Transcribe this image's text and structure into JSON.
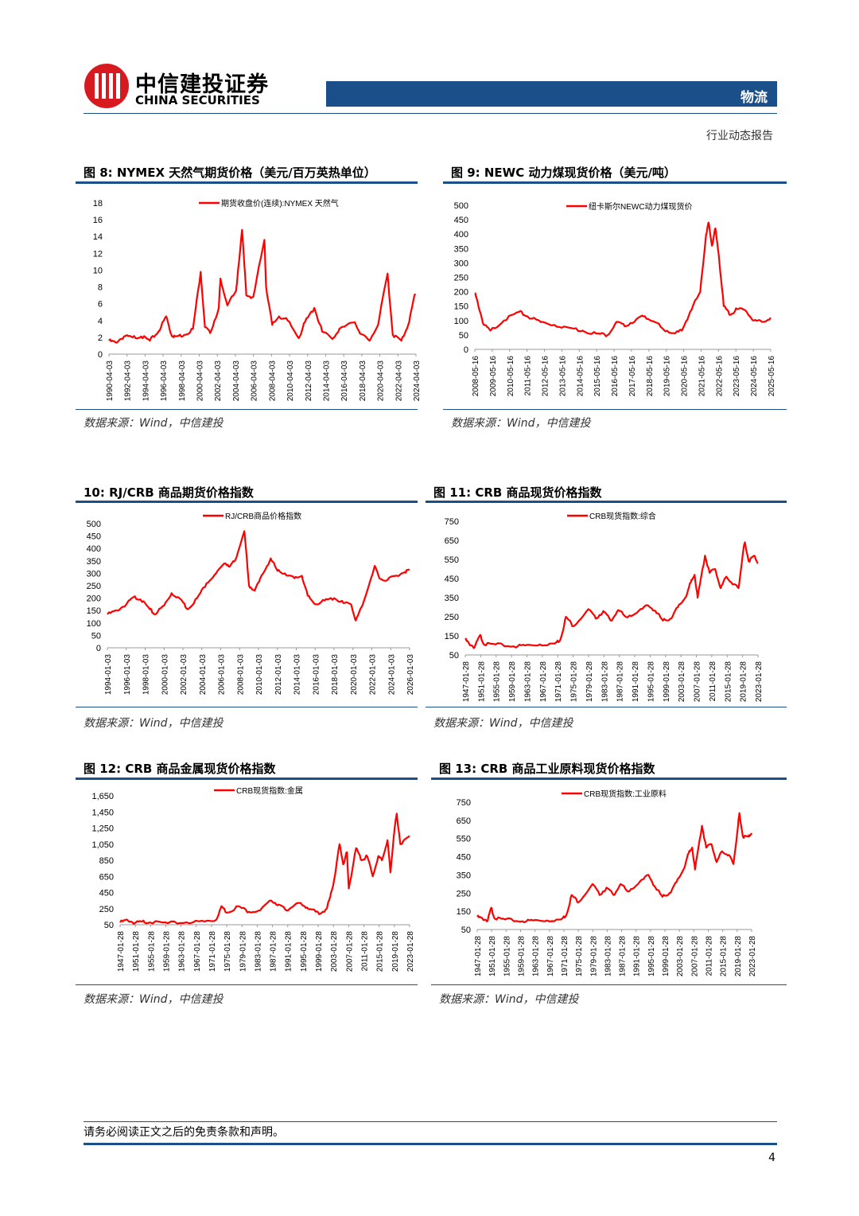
{
  "header": {
    "brand_cn": "中信建投证券",
    "brand_en": "CHINA SECURITIES",
    "category": "物流",
    "report_type": "行业动态报告",
    "accent": "#1b4f8a",
    "brand_red": "#d71920"
  },
  "figures": [
    {
      "title": "图 8: NYMEX 天然气期货价格（美元/百万英热单位）",
      "source": "数据来源：Wind，中信建投"
    },
    {
      "title": "图 9: NEWC 动力煤现货价格（美元/吨）",
      "source": "数据来源：Wind，中信建投"
    },
    {
      "title": "10: RJ/CRB 商品期货价格指数",
      "source": "数据来源：Wind，中信建投"
    },
    {
      "title": "图 11: CRB 商品现货价格指数",
      "source": "数据来源：Wind，中信建投"
    },
    {
      "title": "图 12: CRB 商品金属现货价格指数",
      "source": "数据来源：Wind，中信建投"
    },
    {
      "title": "图 13: CRB 商品工业原料现货价格指数",
      "source": "数据来源：Wind，中信建投"
    }
  ],
  "chart_data": [
    {
      "type": "line",
      "legend": "期货收盘价(连续):NYMEX 天然气",
      "color": "#ff0000",
      "ylim": [
        0,
        18
      ],
      "yticks": [
        "0",
        "2",
        "4",
        "6",
        "8",
        "10",
        "12",
        "14",
        "16",
        "18"
      ],
      "xticks": [
        "1990-04-03",
        "1992-04-03",
        "1994-04-03",
        "1996-04-03",
        "1998-04-03",
        "2000-04-03",
        "2002-04-03",
        "2004-04-03",
        "2006-04-03",
        "2008-04-03",
        "2010-04-03",
        "2012-04-03",
        "2014-04-03",
        "2016-04-03",
        "2018-04-03",
        "2020-04-03",
        "2022-04-03",
        "2024-04-03"
      ],
      "xrange": [
        1990.25,
        2025.9
      ],
      "x": [
        1990.25,
        1991,
        1992,
        1993,
        1994,
        1995,
        1996,
        1996.9,
        1997.5,
        1998,
        1999,
        2000,
        2000.9,
        2001.4,
        2002,
        2003,
        2003.2,
        2004,
        2005,
        2005.7,
        2006.2,
        2007,
        2008.3,
        2008.5,
        2009.2,
        2010,
        2011,
        2012.3,
        2013,
        2014.1,
        2015,
        2016.2,
        2017,
        2018.8,
        2019.5,
        2020.5,
        2021.5,
        2022.6,
        2023.2,
        2024.2,
        2025,
        2025.8
      ],
      "y": [
        1.6,
        1.4,
        2.1,
        2.0,
        2.1,
        1.6,
        2.7,
        4.5,
        2.3,
        2.1,
        2.3,
        3.0,
        9.8,
        3.2,
        2.5,
        5.5,
        9.0,
        5.8,
        7.5,
        14.8,
        7.0,
        6.8,
        13.6,
        8.0,
        3.5,
        4.5,
        4.0,
        1.9,
        3.8,
        5.5,
        2.7,
        1.8,
        3.0,
        3.8,
        2.4,
        1.6,
        3.5,
        9.6,
        2.3,
        1.6,
        3.5,
        7.2
      ]
    },
    {
      "type": "line",
      "legend": "纽卡斯尔NEWC动力煤现货价",
      "color": "#ff0000",
      "ylim": [
        0,
        500
      ],
      "yticks": [
        "0",
        "50",
        "100",
        "150",
        "200",
        "250",
        "300",
        "350",
        "400",
        "450",
        "500"
      ],
      "xticks": [
        "2008-05-16",
        "2009-05-16",
        "2010-05-16",
        "2011-05-16",
        "2012-05-16",
        "2013-05-16",
        "2014-05-16",
        "2015-05-16",
        "2016-05-16",
        "2017-05-16",
        "2018-05-16",
        "2019-05-16",
        "2020-05-16",
        "2021-05-16",
        "2022-05-16",
        "2023-05-16",
        "2024-05-16",
        "2025-05-16"
      ],
      "xrange": [
        2008.37,
        2026.0
      ],
      "x": [
        2008.37,
        2008.55,
        2008.9,
        2009.3,
        2010.1,
        2011.0,
        2011.5,
        2012.3,
        2013.1,
        2014.0,
        2014.8,
        2015.6,
        2016.3,
        2016.8,
        2017.3,
        2018.0,
        2018.5,
        2019.1,
        2019.6,
        2020.3,
        2020.7,
        2021.2,
        2021.8,
        2022.15,
        2022.3,
        2022.5,
        2022.7,
        2022.9,
        2023.2,
        2023.6,
        2024.0,
        2024.5,
        2025.0,
        2025.5,
        2026.0
      ],
      "y": [
        195,
        160,
        85,
        65,
        100,
        130,
        115,
        95,
        85,
        75,
        65,
        55,
        50,
        95,
        80,
        105,
        115,
        95,
        70,
        55,
        65,
        130,
        200,
        400,
        440,
        360,
        420,
        330,
        150,
        120,
        140,
        135,
        100,
        95,
        110
      ]
    },
    {
      "type": "line",
      "legend": "RJ/CRB商品价格指数",
      "color": "#ff0000",
      "ylim": [
        0,
        500
      ],
      "yticks": [
        "0",
        "50",
        "100",
        "150",
        "200",
        "250",
        "300",
        "350",
        "400",
        "450",
        "500"
      ],
      "xticks": [
        "1994-01-03",
        "1996-01-03",
        "1998-01-03",
        "2000-01-03",
        "2002-01-03",
        "2004-01-03",
        "2006-01-03",
        "2008-01-03",
        "2010-01-03",
        "2012-01-03",
        "2014-01-03",
        "2016-01-03",
        "2018-01-03",
        "2020-01-03",
        "2022-01-03",
        "2024-01-03",
        "2026-01-03"
      ],
      "xrange": [
        1994.0,
        2026.0
      ],
      "x": [
        1994,
        1995,
        1996,
        1996.8,
        1997.5,
        1998.5,
        1999,
        2000,
        2000.8,
        2001.8,
        2002.5,
        2003.5,
        2004.5,
        2005.5,
        2006.5,
        2007,
        2007.5,
        2008.5,
        2009.0,
        2009.6,
        2010.5,
        2011.3,
        2012,
        2012.8,
        2013.8,
        2014.6,
        2015.2,
        2016,
        2017,
        2018,
        2019,
        2019.8,
        2020.3,
        2021,
        2022.3,
        2022.8,
        2023.5,
        2024.5,
        2025.5,
        2026
      ],
      "y": [
        135,
        150,
        175,
        205,
        195,
        155,
        135,
        170,
        220,
        195,
        155,
        200,
        260,
        300,
        340,
        330,
        350,
        470,
        250,
        230,
        300,
        360,
        310,
        300,
        280,
        290,
        210,
        175,
        190,
        200,
        180,
        175,
        110,
        170,
        330,
        280,
        270,
        290,
        305,
        315
      ]
    },
    {
      "type": "line",
      "legend": "CRB现货指数:综合",
      "color": "#ff0000",
      "ylim": [
        50,
        750
      ],
      "yticks": [
        "50",
        "150",
        "250",
        "350",
        "450",
        "550",
        "650",
        "750"
      ],
      "xticks": [
        "1947-01-28",
        "1951-01-28",
        "1955-01-28",
        "1959-01-28",
        "1963-01-28",
        "1967-01-28",
        "1971-01-28",
        "1975-01-28",
        "1979-01-28",
        "1983-01-28",
        "1987-01-28",
        "1991-01-28",
        "1995-01-28",
        "1999-01-28",
        "2003-01-28",
        "2007-01-28",
        "2011-01-28",
        "2015-01-28",
        "2019-01-28",
        "2023-01-28"
      ],
      "xrange": [
        1947.0,
        2025.5
      ],
      "x": [
        1947,
        1948,
        1949.5,
        1951,
        1952,
        1955,
        1960,
        1963,
        1967,
        1971,
        1972.5,
        1974,
        1976,
        1980,
        1982,
        1984,
        1986,
        1988,
        1990,
        1993,
        1996,
        1998,
        2000,
        2002,
        2004,
        2006,
        2007.5,
        2008.5,
        2009.3,
        2011.3,
        2012.5,
        2014,
        2015.5,
        2017,
        2019,
        2020.3,
        2021.5,
        2022,
        2023,
        2024.5,
        2025.5
      ],
      "y": [
        130,
        110,
        90,
        155,
        105,
        105,
        95,
        100,
        105,
        110,
        130,
        250,
        200,
        290,
        240,
        280,
        230,
        285,
        250,
        270,
        310,
        280,
        230,
        240,
        300,
        350,
        430,
        470,
        350,
        570,
        480,
        500,
        400,
        460,
        420,
        400,
        590,
        640,
        540,
        570,
        530
      ]
    },
    {
      "type": "line",
      "legend": "CRB现货指数:金属",
      "color": "#ff0000",
      "ylim": [
        50,
        1650
      ],
      "yticks": [
        "50",
        "250",
        "450",
        "650",
        "850",
        "1,050",
        "1,250",
        "1,450",
        "1,650"
      ],
      "xticks": [
        "1947-01-28",
        "1951-01-28",
        "1955-01-28",
        "1959-01-28",
        "1963-01-28",
        "1967-01-28",
        "1971-01-28",
        "1975-01-28",
        "1979-01-28",
        "1983-01-28",
        "1987-01-28",
        "1991-01-28",
        "1995-01-28",
        "1999-01-28",
        "2003-01-28",
        "2007-01-28",
        "2011-01-28",
        "2015-01-28",
        "2019-01-28",
        "2023-01-28"
      ],
      "xrange": [
        1947.0,
        2025.5
      ],
      "x": [
        1947,
        1949,
        1951,
        1953,
        1955,
        1960,
        1965,
        1970,
        1973,
        1974.5,
        1976,
        1979,
        1982,
        1985,
        1988,
        1990,
        1992,
        1995,
        1997,
        1999,
        2001,
        2003,
        2004,
        2005,
        2006.5,
        2007.5,
        2008.5,
        2009,
        2011,
        2012.5,
        2014,
        2015.5,
        2017,
        2018,
        2019.5,
        2020.3,
        2021.2,
        2022,
        2023,
        2025.5
      ],
      "y": [
        80,
        110,
        70,
        90,
        80,
        70,
        80,
        90,
        110,
        280,
        200,
        280,
        210,
        230,
        350,
        300,
        230,
        320,
        280,
        240,
        180,
        250,
        400,
        600,
        1050,
        800,
        950,
        500,
        1000,
        850,
        900,
        650,
        900,
        850,
        1100,
        700,
        1150,
        1430,
        1050,
        1150
      ]
    },
    {
      "type": "line",
      "legend": "CRB现货指数:工业原料",
      "color": "#ff0000",
      "ylim": [
        50,
        750
      ],
      "yticks": [
        "50",
        "150",
        "250",
        "350",
        "450",
        "550",
        "650",
        "750"
      ],
      "xticks": [
        "1947-01-28",
        "1951-01-28",
        "1955-01-28",
        "1959-01-28",
        "1963-01-28",
        "1967-01-28",
        "1971-01-28",
        "1975-01-28",
        "1979-01-28",
        "1983-01-28",
        "1987-01-28",
        "1991-01-28",
        "1995-01-28",
        "1999-01-28",
        "2003-01-28",
        "2007-01-28",
        "2011-01-28",
        "2015-01-28",
        "2019-01-28",
        "2023-01-28"
      ],
      "xrange": [
        1947.0,
        2025.5
      ],
      "x": [
        1947,
        1948.5,
        1950,
        1951,
        1952,
        1955,
        1960,
        1963,
        1967,
        1971,
        1972.5,
        1974,
        1976,
        1980,
        1982,
        1984,
        1986,
        1988,
        1990,
        1993,
        1996,
        1998,
        2000,
        2002,
        2004,
        2006,
        2007.5,
        2008.5,
        2009.3,
        2011.3,
        2012.5,
        2014,
        2015.5,
        2017,
        2019,
        2020.3,
        2021.5,
        2022,
        2023,
        2024.5,
        2025.5
      ],
      "y": [
        120,
        110,
        100,
        170,
        110,
        105,
        95,
        100,
        100,
        105,
        130,
        240,
        200,
        300,
        240,
        280,
        240,
        300,
        260,
        300,
        350,
        280,
        230,
        250,
        310,
        380,
        470,
        500,
        380,
        620,
        500,
        520,
        420,
        480,
        460,
        410,
        600,
        690,
        560,
        560,
        580
      ]
    }
  ],
  "footer": {
    "disclaimer": "请务必阅读正文之后的免责条款和声明。",
    "page": "4"
  }
}
